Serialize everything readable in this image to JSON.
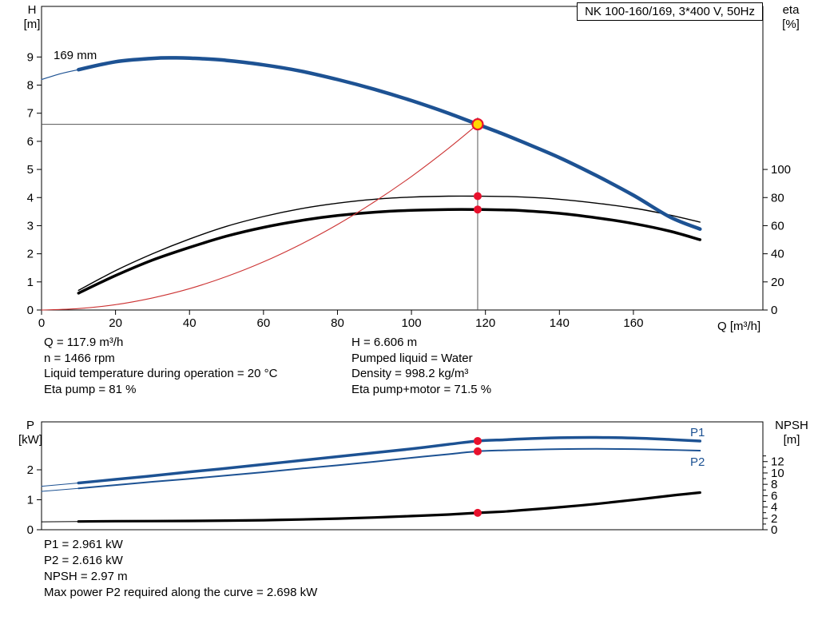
{
  "header": {
    "title_box": "NK 100-160/169, 3*400 V, 50Hz"
  },
  "labels": {
    "h_axis": [
      "H",
      "[m]"
    ],
    "eta_axis": [
      "eta",
      "[%]"
    ],
    "q_axis": "Q [m³/h]",
    "p_axis": [
      "P",
      "[kW]"
    ],
    "npsh_axis": [
      "NPSH",
      "[m]"
    ],
    "impeller": "169 mm",
    "p1": "P1",
    "p2": "P2"
  },
  "info_left": [
    "Q = 117.9 m³/h",
    "n = 1466 rpm",
    "Liquid temperature during operation = 20 °C",
    "Eta pump = 81 %"
  ],
  "info_right": [
    "H = 6.606 m",
    "Pumped liquid = Water",
    "Density = 998.2 kg/m³",
    "Eta pump+motor = 71.5 %"
  ],
  "results": [
    "P1 = 2.961 kW",
    "P2 = 2.616 kW",
    "NPSH = 2.97 m",
    "Max power P2 required along the curve = 2.698 kW"
  ],
  "colors": {
    "curve_blue": "#1d5293",
    "curve_black": "#000000",
    "curve_red": "#cc3333",
    "marker_red": "#e8112d",
    "marker_yellow": "#ffd800",
    "guide_gray": "#555555"
  },
  "chart_data": [
    {
      "type": "line",
      "title": "QH and efficiency curves",
      "x_axis": {
        "label": "Q [m³/h]",
        "min": 0,
        "max": 195,
        "ticks": [
          0,
          20,
          40,
          60,
          80,
          100,
          120,
          140,
          160
        ]
      },
      "y_left": {
        "label": "H [m]",
        "min": 0,
        "max": 10.8,
        "ticks": [
          0,
          1,
          2,
          3,
          4,
          5,
          6,
          7,
          8,
          9
        ]
      },
      "y_right": {
        "label": "eta [%]",
        "min": 0,
        "max": 216,
        "ticks": [
          0,
          20,
          40,
          60,
          80,
          100
        ]
      },
      "series": [
        {
          "name": "head-curve-lead",
          "axis": "left",
          "color": "#1d5293",
          "width": 1.2,
          "points": [
            [
              0,
              8.2
            ],
            [
              5,
              8.4
            ],
            [
              10,
              8.55
            ]
          ]
        },
        {
          "name": "eta-pump-curve",
          "axis": "right",
          "color": "#000000",
          "width": 1.4,
          "points": [
            [
              10,
              14
            ],
            [
              20,
              28
            ],
            [
              30,
              40
            ],
            [
              40,
              50.5
            ],
            [
              50,
              59.5
            ],
            [
              60,
              66.5
            ],
            [
              70,
              72
            ],
            [
              80,
              76
            ],
            [
              90,
              78.8
            ],
            [
              100,
              80.3
            ],
            [
              110,
              81
            ],
            [
              117.9,
              81
            ],
            [
              125,
              80.8
            ],
            [
              130,
              80.4
            ],
            [
              140,
              78.8
            ],
            [
              150,
              76
            ],
            [
              160,
              72.5
            ],
            [
              170,
              67.5
            ],
            [
              178,
              62.5
            ]
          ]
        },
        {
          "name": "eta-pump-motor-curve",
          "axis": "right",
          "color": "#000000",
          "width": 3.5,
          "points": [
            [
              10,
              12
            ],
            [
              20,
              24.5
            ],
            [
              30,
              35.5
            ],
            [
              40,
              44.5
            ],
            [
              50,
              52.5
            ],
            [
              60,
              58.8
            ],
            [
              70,
              63.6
            ],
            [
              80,
              67.2
            ],
            [
              90,
              69.6
            ],
            [
              100,
              70.9
            ],
            [
              110,
              71.5
            ],
            [
              117.9,
              71.5
            ],
            [
              125,
              71.2
            ],
            [
              130,
              70.7
            ],
            [
              140,
              68.8
            ],
            [
              150,
              65.6
            ],
            [
              160,
              61.5
            ],
            [
              170,
              56
            ],
            [
              178,
              50
            ]
          ]
        },
        {
          "name": "system-curve",
          "axis": "left",
          "color": "#cc3333",
          "width": 1.1,
          "points": [
            [
              0,
              0
            ],
            [
              10,
              0.05
            ],
            [
              20,
              0.19
            ],
            [
              30,
              0.43
            ],
            [
              40,
              0.76
            ],
            [
              50,
              1.19
            ],
            [
              60,
              1.71
            ],
            [
              70,
              2.33
            ],
            [
              80,
              3.04
            ],
            [
              90,
              3.85
            ],
            [
              100,
              4.75
            ],
            [
              110,
              5.75
            ],
            [
              117.9,
              6.606
            ]
          ]
        },
        {
          "name": "head-curve-169mm",
          "axis": "left",
          "color": "#1d5293",
          "width": 4.5,
          "points": [
            [
              10,
              8.55
            ],
            [
              20,
              8.83
            ],
            [
              30,
              8.95
            ],
            [
              35,
              8.97
            ],
            [
              40,
              8.96
            ],
            [
              50,
              8.88
            ],
            [
              60,
              8.72
            ],
            [
              70,
              8.5
            ],
            [
              80,
              8.2
            ],
            [
              90,
              7.85
            ],
            [
              100,
              7.45
            ],
            [
              110,
              7.0
            ],
            [
              117.9,
              6.606
            ],
            [
              125,
              6.25
            ],
            [
              130,
              5.98
            ],
            [
              140,
              5.42
            ],
            [
              150,
              4.78
            ],
            [
              160,
              4.08
            ],
            [
              170,
              3.3
            ],
            [
              178,
              2.88
            ]
          ]
        }
      ],
      "guides": [
        {
          "type": "h",
          "axis": "left",
          "v": 6.606,
          "q1": 0,
          "q2": 117.9
        },
        {
          "type": "v",
          "axis": "left",
          "q": 117.9,
          "v1": 0,
          "v2": 6.85
        }
      ],
      "markers": [
        {
          "name": "eta-pump-point",
          "axis": "right",
          "q": 117.9,
          "v": 81,
          "r": 5,
          "fill": "#e8112d"
        },
        {
          "name": "eta-pump-motor-point",
          "axis": "right",
          "q": 117.9,
          "v": 71.5,
          "r": 5,
          "fill": "#e8112d"
        },
        {
          "name": "duty-point",
          "axis": "left",
          "q": 117.9,
          "v": 6.606,
          "r": 6.5,
          "fill": "#ffd800",
          "stroke": "#e8112d",
          "stroke_width": 2.2
        }
      ]
    },
    {
      "type": "line",
      "title": "Power and NPSH curves",
      "x_axis": {
        "label": "",
        "min": 0,
        "max": 195,
        "ticks": []
      },
      "y_left": {
        "label": "P [kW]",
        "min": 0,
        "max": 3.6,
        "ticks": [
          0,
          1,
          2
        ]
      },
      "y_right": {
        "label": "NPSH [m]",
        "min": 0,
        "max": 19,
        "ticks": [
          0,
          2,
          4,
          6,
          8,
          10,
          12
        ],
        "minor_ticks": [
          1,
          3,
          5,
          7,
          9,
          11,
          13
        ]
      },
      "series": [
        {
          "name": "p1-curve-lead",
          "axis": "left",
          "color": "#1d5293",
          "width": 1,
          "points": [
            [
              0,
              1.45
            ],
            [
              10,
              1.56
            ]
          ]
        },
        {
          "name": "p2-curve-lead",
          "axis": "left",
          "color": "#1d5293",
          "width": 1,
          "points": [
            [
              0,
              1.28
            ],
            [
              10,
              1.38
            ]
          ]
        },
        {
          "name": "npsh-curve-lead",
          "axis": "right",
          "color": "#000000",
          "width": 1,
          "points": [
            [
              0,
              1.4
            ],
            [
              10,
              1.45
            ]
          ]
        },
        {
          "name": "p1-curve",
          "axis": "left",
          "color": "#1d5293",
          "width": 3.5,
          "points": [
            [
              10,
              1.56
            ],
            [
              20,
              1.68
            ],
            [
              30,
              1.8
            ],
            [
              40,
              1.93
            ],
            [
              50,
              2.05
            ],
            [
              60,
              2.18
            ],
            [
              70,
              2.31
            ],
            [
              80,
              2.44
            ],
            [
              90,
              2.57
            ],
            [
              100,
              2.7
            ],
            [
              110,
              2.85
            ],
            [
              117.9,
              2.961
            ],
            [
              125,
              3.0
            ],
            [
              130,
              3.03
            ],
            [
              140,
              3.07
            ],
            [
              150,
              3.08
            ],
            [
              160,
              3.06
            ],
            [
              170,
              3.01
            ],
            [
              178,
              2.96
            ]
          ]
        },
        {
          "name": "p2-curve",
          "axis": "left",
          "color": "#1d5293",
          "width": 2,
          "points": [
            [
              10,
              1.38
            ],
            [
              20,
              1.49
            ],
            [
              30,
              1.6
            ],
            [
              40,
              1.7
            ],
            [
              50,
              1.81
            ],
            [
              60,
              1.92
            ],
            [
              70,
              2.04
            ],
            [
              80,
              2.15
            ],
            [
              90,
              2.27
            ],
            [
              100,
              2.4
            ],
            [
              110,
              2.52
            ],
            [
              117.9,
              2.616
            ],
            [
              125,
              2.65
            ],
            [
              130,
              2.665
            ],
            [
              140,
              2.69
            ],
            [
              150,
              2.698
            ],
            [
              160,
              2.69
            ],
            [
              170,
              2.665
            ],
            [
              178,
              2.64
            ]
          ]
        },
        {
          "name": "npsh-curve",
          "axis": "right",
          "color": "#000000",
          "width": 3.2,
          "points": [
            [
              10,
              1.45
            ],
            [
              20,
              1.5
            ],
            [
              30,
              1.52
            ],
            [
              40,
              1.55
            ],
            [
              50,
              1.6
            ],
            [
              60,
              1.68
            ],
            [
              70,
              1.8
            ],
            [
              80,
              1.95
            ],
            [
              90,
              2.15
            ],
            [
              100,
              2.4
            ],
            [
              110,
              2.68
            ],
            [
              117.9,
              2.97
            ],
            [
              125,
              3.2
            ],
            [
              130,
              3.45
            ],
            [
              140,
              3.95
            ],
            [
              150,
              4.55
            ],
            [
              160,
              5.25
            ],
            [
              170,
              6.0
            ],
            [
              178,
              6.55
            ]
          ]
        }
      ],
      "guides": [],
      "markers": [
        {
          "name": "p1-point",
          "axis": "left",
          "q": 117.9,
          "v": 2.961,
          "r": 5,
          "fill": "#e8112d"
        },
        {
          "name": "p2-point",
          "axis": "left",
          "q": 117.9,
          "v": 2.616,
          "r": 5,
          "fill": "#e8112d"
        },
        {
          "name": "npsh-point",
          "axis": "right",
          "q": 117.9,
          "v": 2.97,
          "r": 5,
          "fill": "#e8112d"
        }
      ]
    }
  ]
}
